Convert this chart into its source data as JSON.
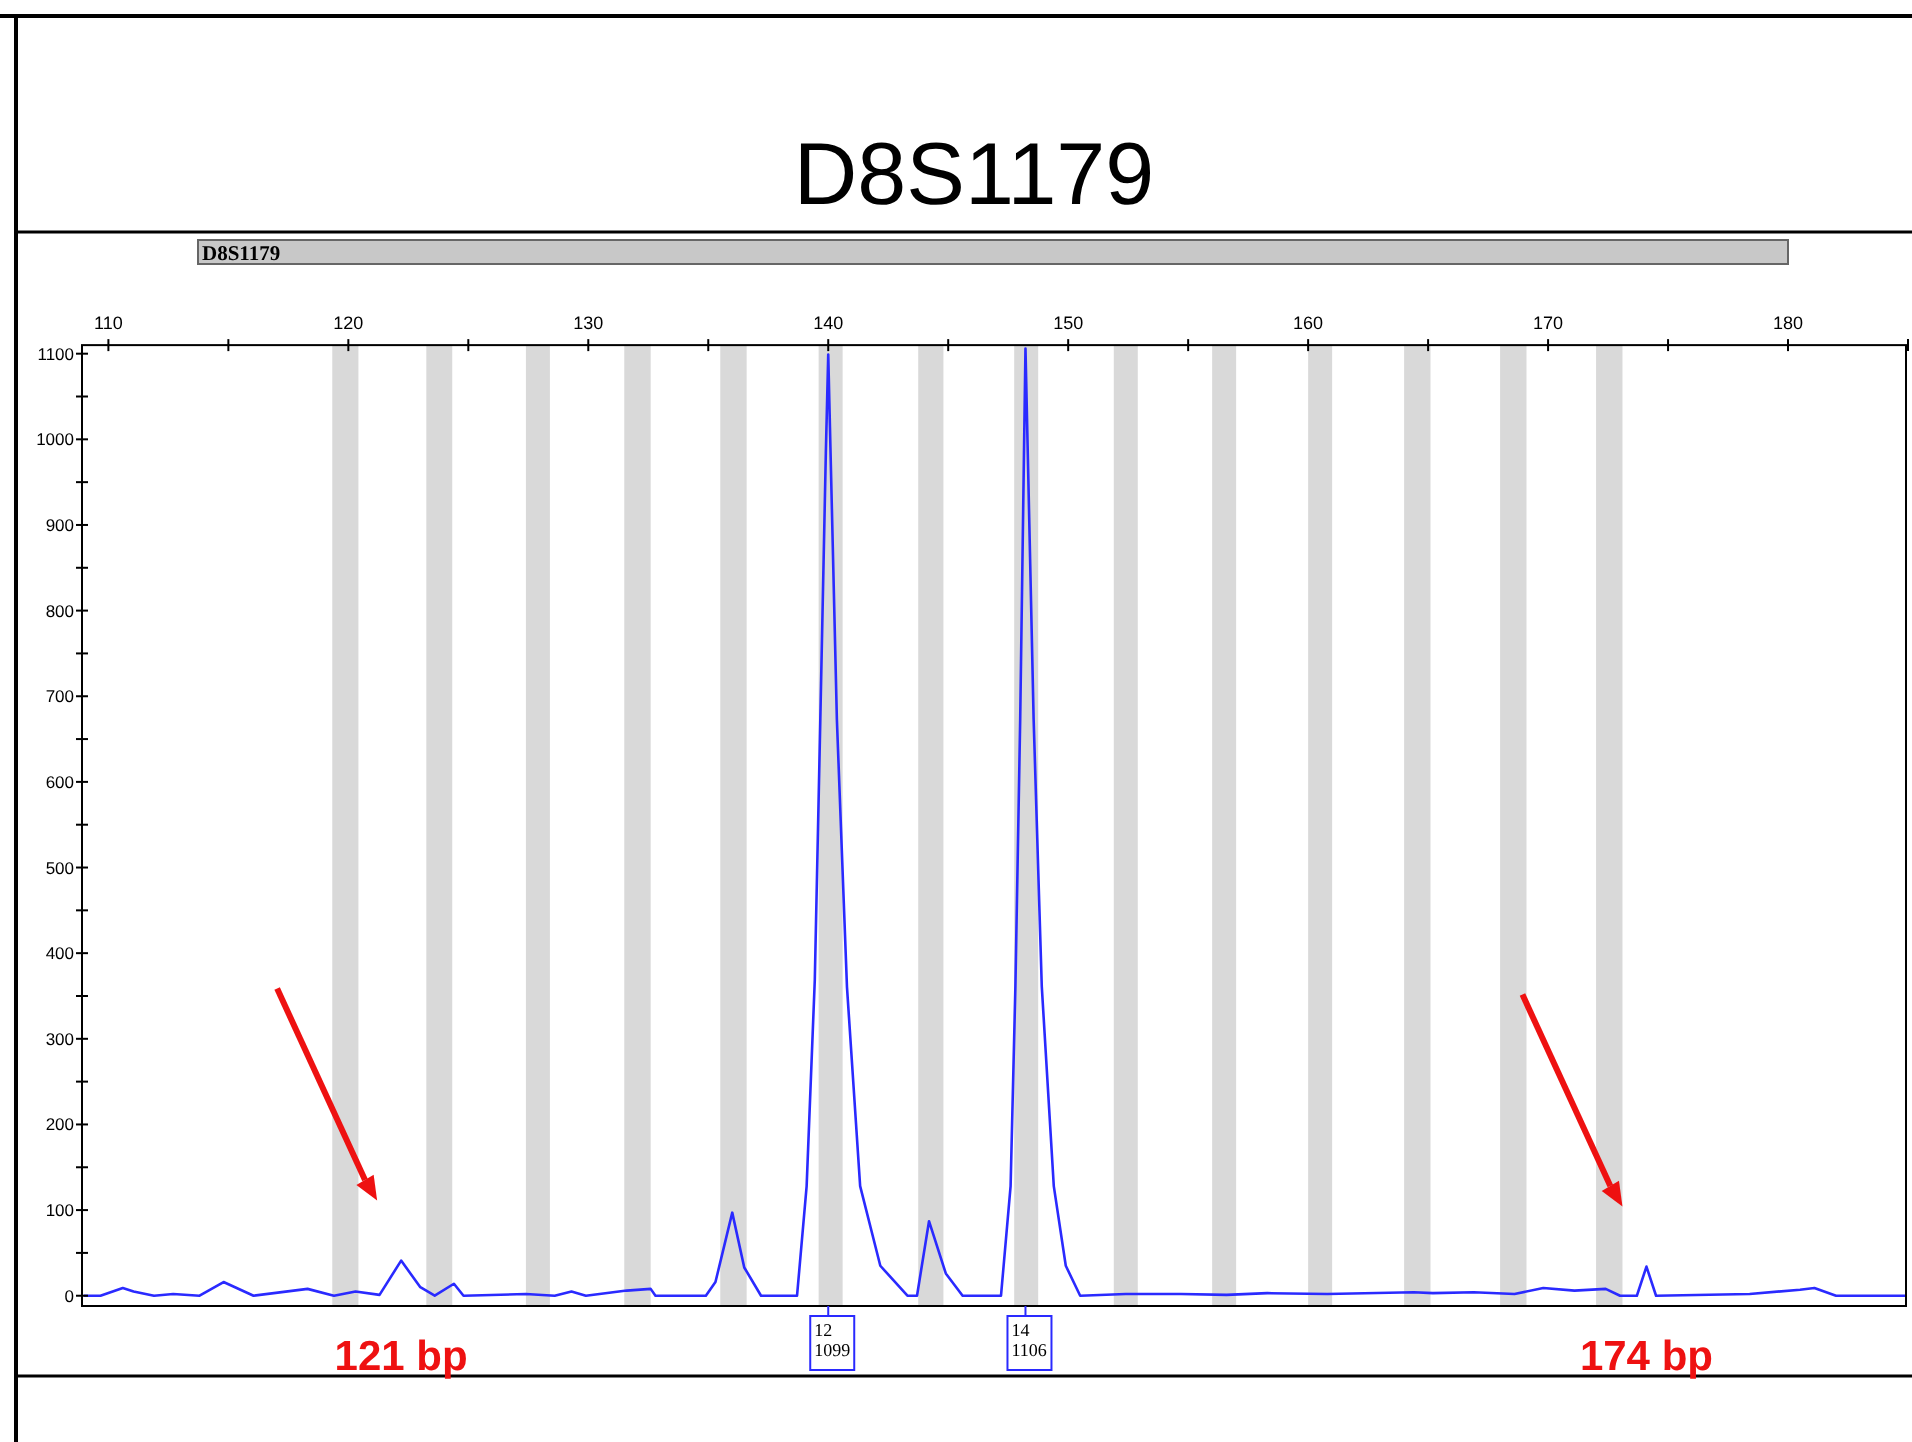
{
  "chart_data": {
    "type": "line",
    "title": "D8S1179",
    "xlim": [
      108.9,
      185
    ],
    "ylim": [
      -12,
      1110
    ],
    "xticks": [
      110,
      {
        "value": 115,
        "label": null
      },
      120,
      {
        "value": 125,
        "label": null
      },
      130,
      {
        "value": 135,
        "label": null
      },
      140,
      {
        "value": 145,
        "label": null
      },
      150,
      {
        "value": 155,
        "label": null
      },
      160,
      {
        "value": 165,
        "label": null
      },
      170,
      {
        "value": 175,
        "label": null
      },
      180,
      {
        "value": 185,
        "label": null
      }
    ],
    "yticks": [
      0,
      {
        "value": 50,
        "label": null
      },
      100,
      {
        "value": 150,
        "label": null
      },
      200,
      {
        "value": 250,
        "label": null
      },
      300,
      {
        "value": 350,
        "label": null
      },
      400,
      {
        "value": 450,
        "label": null
      },
      500,
      {
        "value": 550,
        "label": null
      },
      600,
      {
        "value": 650,
        "label": null
      },
      700,
      {
        "value": 750,
        "label": null
      },
      800,
      {
        "value": 850,
        "label": null
      },
      900,
      {
        "value": 950,
        "label": null
      },
      1000,
      {
        "value": 1050,
        "label": null
      },
      1100
    ],
    "grid": false,
    "marker": "none",
    "line_style": "solid",
    "series": [
      {
        "color": "#2a2aff",
        "x": [
          108.97,
          109.67,
          110.6,
          111.05,
          111.9,
          112.7,
          113.8,
          114.8,
          116.05,
          118.3,
          119.4,
          120.3,
          121.3,
          122.2,
          123.0,
          123.6,
          124.4,
          124.8,
          127.4,
          128.6,
          129.3,
          129.9,
          131.6,
          132.6,
          132.8,
          134.9,
          135.3,
          136.0,
          136.5,
          137.2,
          138.7,
          139.1,
          139.44,
          139.67,
          139.9,
          140.0,
          140.36,
          140.78,
          141.33,
          142.17,
          143.3,
          143.7,
          144.2,
          144.9,
          145.6,
          147.2,
          147.6,
          147.8,
          148.0,
          148.22,
          148.56,
          148.9,
          149.4,
          149.9,
          150.5,
          152.4,
          154.7,
          156.6,
          158.3,
          160.8,
          164.4,
          165.2,
          166.9,
          168.6,
          169.8,
          171.1,
          172.4,
          173.0,
          173.7,
          174.1,
          174.5,
          178.4,
          180.5,
          181.1,
          182.0,
          184.9
        ],
        "values": [
          0,
          0,
          9,
          5,
          0,
          2,
          0,
          16,
          0,
          8,
          0,
          5,
          1,
          41,
          10,
          0,
          14,
          0,
          2,
          0,
          5,
          0,
          6,
          8,
          0,
          0,
          16,
          97,
          33,
          0,
          0,
          128,
          369,
          673,
          984,
          1099,
          673,
          361,
          128,
          35,
          0,
          0,
          87,
          26,
          0,
          0,
          128,
          361,
          673,
          1106,
          673,
          361,
          128,
          35,
          0,
          2,
          2,
          1,
          3,
          2,
          4,
          3,
          4,
          2,
          9,
          6,
          8,
          0,
          0,
          34,
          0,
          2,
          7,
          9,
          0,
          0
        ]
      }
    ],
    "bands": [
      {
        "axis": "x",
        "from": 119.33,
        "to": 120.42,
        "color": "#d9d9d9"
      },
      {
        "axis": "x",
        "from": 123.25,
        "to": 124.33,
        "color": "#d9d9d9"
      },
      {
        "axis": "x",
        "from": 127.4,
        "to": 128.4,
        "color": "#d9d9d9"
      },
      {
        "axis": "x",
        "from": 131.5,
        "to": 132.6,
        "color": "#d9d9d9"
      },
      {
        "axis": "x",
        "from": 135.5,
        "to": 136.6,
        "color": "#d9d9d9"
      },
      {
        "axis": "x",
        "from": 139.6,
        "to": 140.6,
        "color": "#d9d9d9"
      },
      {
        "axis": "x",
        "from": 143.75,
        "to": 144.8,
        "color": "#d9d9d9"
      },
      {
        "axis": "x",
        "from": 147.75,
        "to": 148.75,
        "color": "#d9d9d9"
      },
      {
        "axis": "x",
        "from": 151.9,
        "to": 152.9,
        "color": "#d9d9d9"
      },
      {
        "axis": "x",
        "from": 156.0,
        "to": 157.0,
        "color": "#d9d9d9"
      },
      {
        "axis": "x",
        "from": 160.0,
        "to": 161.0,
        "color": "#d9d9d9"
      },
      {
        "axis": "x",
        "from": 164.0,
        "to": 165.1,
        "color": "#d9d9d9"
      },
      {
        "axis": "x",
        "from": 168.0,
        "to": 169.1,
        "color": "#d9d9d9"
      },
      {
        "axis": "x",
        "from": 172.0,
        "to": 173.1,
        "color": "#d9d9d9"
      }
    ],
    "annotations": [
      "D8S1179",
      {
        "text": "12\n1099",
        "x": 140
      },
      {
        "text": "14\n1106",
        "x": 148.22
      },
      {
        "text": "121 bp",
        "x": 122.2,
        "y": 41
      },
      {
        "text": "174 bp",
        "x": 174.1,
        "y": 34
      }
    ]
  }
}
